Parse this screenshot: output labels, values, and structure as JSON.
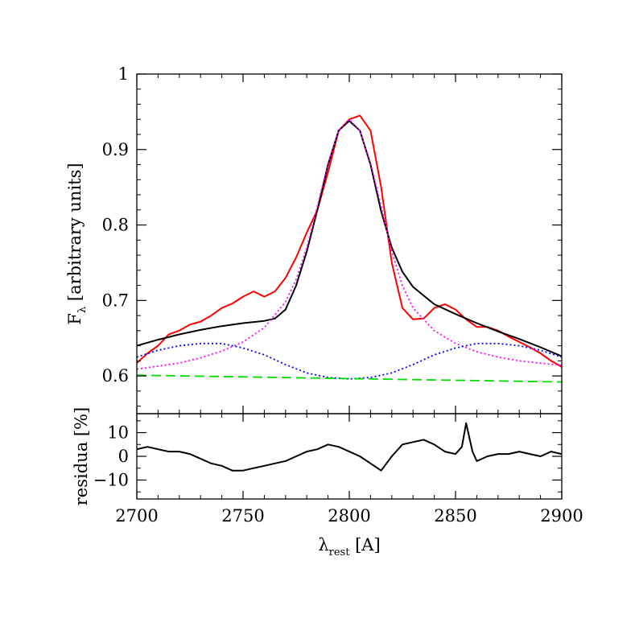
{
  "chart_data": [
    {
      "type": "line",
      "ylabel_main": "F",
      "ylabel_sub": "λ",
      "ylabel_rest": " [arbitrary units]",
      "xlim": [
        2700,
        2900
      ],
      "ylim": [
        0.55,
        1.0
      ],
      "y_tick_labels": [
        "0.6",
        "0.7",
        "0.8",
        "0.9",
        "1"
      ],
      "y_ticks": [
        0.6,
        0.7,
        0.8,
        0.9,
        1.0
      ],
      "grid": false,
      "series": [
        {
          "role": "observed spectrum",
          "color": "#ff0000",
          "style": "solid",
          "x": [
            2700,
            2705,
            2710,
            2715,
            2720,
            2725,
            2730,
            2735,
            2740,
            2745,
            2750,
            2755,
            2760,
            2765,
            2770,
            2775,
            2780,
            2785,
            2790,
            2795,
            2800,
            2805,
            2810,
            2815,
            2820,
            2825,
            2830,
            2835,
            2840,
            2845,
            2850,
            2855,
            2860,
            2865,
            2870,
            2875,
            2880,
            2885,
            2890,
            2895,
            2900
          ],
          "y": [
            0.617,
            0.63,
            0.64,
            0.655,
            0.66,
            0.668,
            0.672,
            0.68,
            0.69,
            0.696,
            0.705,
            0.712,
            0.705,
            0.712,
            0.73,
            0.757,
            0.79,
            0.82,
            0.87,
            0.925,
            0.94,
            0.945,
            0.925,
            0.85,
            0.75,
            0.69,
            0.675,
            0.676,
            0.69,
            0.695,
            0.688,
            0.675,
            0.665,
            0.665,
            0.66,
            0.652,
            0.645,
            0.638,
            0.63,
            0.62,
            0.612
          ]
        },
        {
          "role": "total fit",
          "color": "#000000",
          "style": "solid",
          "x": [
            2700,
            2710,
            2720,
            2730,
            2740,
            2750,
            2760,
            2765,
            2770,
            2775,
            2780,
            2785,
            2790,
            2795,
            2800,
            2805,
            2810,
            2815,
            2820,
            2825,
            2830,
            2840,
            2850,
            2860,
            2870,
            2880,
            2890,
            2900
          ],
          "y": [
            0.64,
            0.648,
            0.655,
            0.661,
            0.666,
            0.67,
            0.673,
            0.676,
            0.688,
            0.72,
            0.765,
            0.82,
            0.88,
            0.925,
            0.938,
            0.925,
            0.88,
            0.818,
            0.77,
            0.738,
            0.718,
            0.695,
            0.682,
            0.67,
            0.659,
            0.649,
            0.638,
            0.626
          ]
        },
        {
          "role": "central line component",
          "color": "#ff00ff",
          "style": "dotted",
          "x": [
            2700,
            2710,
            2720,
            2730,
            2740,
            2750,
            2760,
            2770,
            2775,
            2780,
            2785,
            2790,
            2795,
            2800,
            2805,
            2810,
            2815,
            2820,
            2825,
            2830,
            2840,
            2850,
            2860,
            2870,
            2880,
            2890,
            2900
          ],
          "y": [
            0.609,
            0.613,
            0.617,
            0.624,
            0.633,
            0.645,
            0.664,
            0.698,
            0.728,
            0.77,
            0.825,
            0.882,
            0.925,
            0.94,
            0.925,
            0.882,
            0.825,
            0.765,
            0.72,
            0.69,
            0.66,
            0.643,
            0.632,
            0.625,
            0.62,
            0.617,
            0.614
          ]
        },
        {
          "role": "side components",
          "color": "#0000ff",
          "style": "dotted",
          "x": [
            2700,
            2710,
            2720,
            2730,
            2740,
            2750,
            2760,
            2770,
            2780,
            2790,
            2800,
            2810,
            2820,
            2830,
            2840,
            2850,
            2860,
            2870,
            2880,
            2890,
            2900
          ],
          "y": [
            0.625,
            0.634,
            0.64,
            0.643,
            0.643,
            0.637,
            0.628,
            0.615,
            0.604,
            0.598,
            0.596,
            0.598,
            0.604,
            0.615,
            0.628,
            0.637,
            0.643,
            0.643,
            0.64,
            0.634,
            0.625
          ]
        },
        {
          "role": "continuum",
          "color": "#00dd00",
          "style": "dashed",
          "x": [
            2700,
            2900
          ],
          "y": [
            0.601,
            0.592
          ]
        }
      ]
    },
    {
      "type": "line",
      "ylabel": "residua [%]",
      "xlabel_main": "λ",
      "xlabel_sub": "rest",
      "xlabel_rest": " [A]",
      "xlim": [
        2700,
        2900
      ],
      "ylim": [
        -18,
        18
      ],
      "x_tick_labels": [
        "2700",
        "2750",
        "2800",
        "2850",
        "2900"
      ],
      "x_ticks": [
        2700,
        2750,
        2800,
        2850,
        2900
      ],
      "y_tick_labels": [
        "−10",
        "0",
        "10"
      ],
      "y_ticks": [
        -10,
        0,
        10
      ],
      "grid": false,
      "series": [
        {
          "role": "residuals",
          "color": "#000000",
          "style": "solid",
          "x": [
            2700,
            2705,
            2710,
            2715,
            2720,
            2725,
            2730,
            2735,
            2740,
            2745,
            2750,
            2755,
            2760,
            2765,
            2770,
            2775,
            2780,
            2785,
            2790,
            2795,
            2800,
            2805,
            2810,
            2815,
            2820,
            2825,
            2830,
            2835,
            2840,
            2845,
            2850,
            2853,
            2855,
            2858,
            2860,
            2865,
            2870,
            2875,
            2880,
            2885,
            2890,
            2895,
            2900
          ],
          "y": [
            3,
            4,
            3,
            2,
            2,
            1,
            -1,
            -3,
            -4,
            -6,
            -6,
            -5,
            -4,
            -3,
            -2,
            0,
            2,
            3,
            5,
            4,
            2,
            0,
            -3,
            -6,
            0,
            5,
            6,
            7,
            5,
            2,
            1,
            4,
            14,
            2,
            -2,
            0,
            1,
            1,
            2,
            1,
            0,
            2,
            1
          ]
        }
      ]
    }
  ]
}
